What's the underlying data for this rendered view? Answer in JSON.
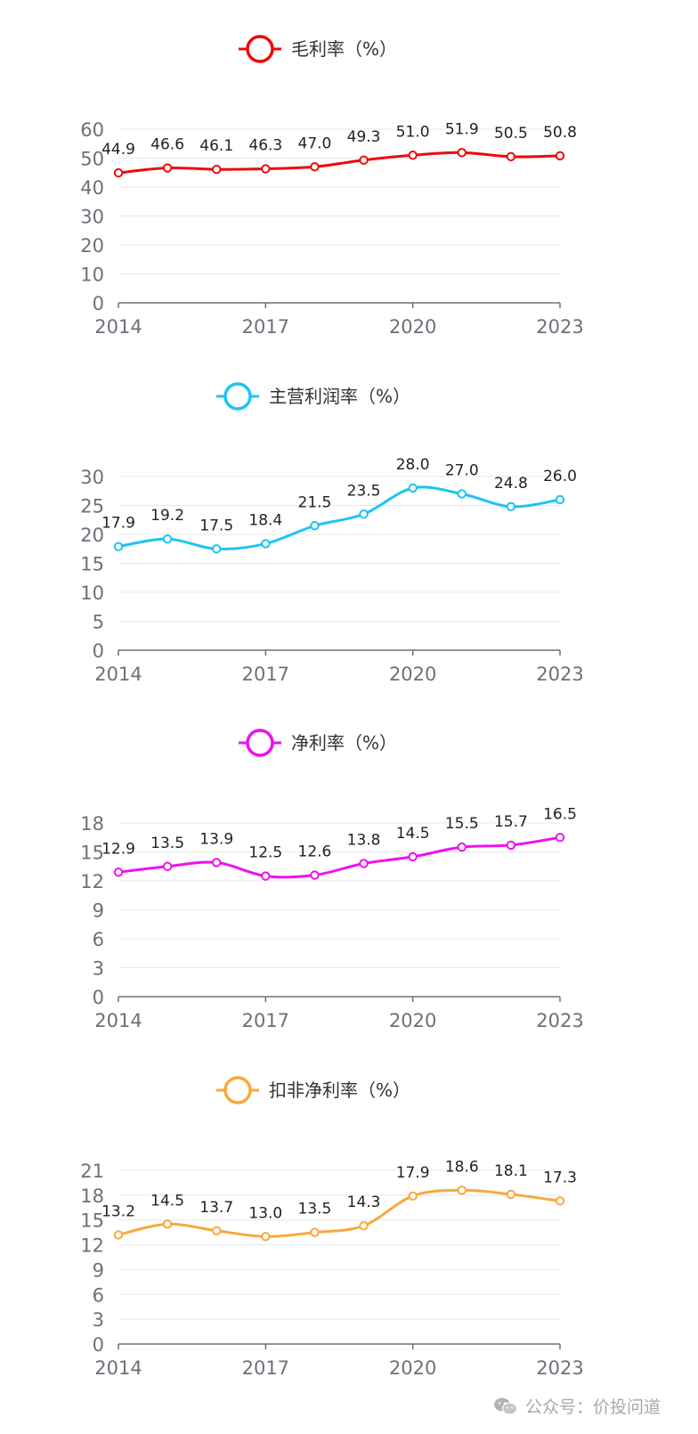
{
  "chart_data": [
    {
      "type": "line",
      "title": "毛利率（%）",
      "legend": "毛利率（%）",
      "color": "#ee0a0a",
      "x": [
        "2014",
        "2015",
        "2016",
        "2017",
        "2018",
        "2019",
        "2020",
        "2021",
        "2022",
        "2023"
      ],
      "values": [
        44.9,
        46.6,
        46.1,
        46.3,
        47.0,
        49.3,
        51.0,
        51.9,
        50.5,
        50.8
      ],
      "labels": [
        "44.9",
        "46.6",
        "46.1",
        "46.3",
        "47.0",
        "49.3",
        "51.0",
        "51.9",
        "50.5",
        "50.8"
      ],
      "xticks": [
        "2014",
        "2017",
        "2020",
        "2023"
      ],
      "yticks": [
        "0",
        "10",
        "20",
        "30",
        "40",
        "50",
        "60"
      ],
      "ylim": [
        0,
        60
      ],
      "xlabel": "",
      "ylabel": "",
      "grid": true
    },
    {
      "type": "line",
      "title": "主营利润率（%）",
      "legend": "主营利润率（%）",
      "color": "#1ec4f2",
      "x": [
        "2014",
        "2015",
        "2016",
        "2017",
        "2018",
        "2019",
        "2020",
        "2021",
        "2022",
        "2023"
      ],
      "values": [
        17.9,
        19.2,
        17.5,
        18.4,
        21.5,
        23.5,
        28.0,
        27.0,
        24.8,
        26.0
      ],
      "labels": [
        "17.9",
        "19.2",
        "17.5",
        "18.4",
        "21.5",
        "23.5",
        "28.0",
        "27.0",
        "24.8",
        "26.0"
      ],
      "xticks": [
        "2014",
        "2017",
        "2020",
        "2023"
      ],
      "yticks": [
        "0",
        "5",
        "10",
        "15",
        "20",
        "25",
        "30"
      ],
      "ylim": [
        0,
        30
      ],
      "xlabel": "",
      "ylabel": "",
      "grid": true
    },
    {
      "type": "line",
      "title": "净利率（%）",
      "legend": "净利率（%）",
      "color": "#ee11ee",
      "x": [
        "2014",
        "2015",
        "2016",
        "2017",
        "2018",
        "2019",
        "2020",
        "2021",
        "2022",
        "2023"
      ],
      "values": [
        12.9,
        13.5,
        13.9,
        12.5,
        12.6,
        13.8,
        14.5,
        15.5,
        15.7,
        16.5
      ],
      "labels": [
        "12.9",
        "13.5",
        "13.9",
        "12.5",
        "12.6",
        "13.8",
        "14.5",
        "15.5",
        "15.7",
        "16.5"
      ],
      "xticks": [
        "2014",
        "2017",
        "2020",
        "2023"
      ],
      "yticks": [
        "0",
        "3",
        "6",
        "9",
        "12",
        "15",
        "18"
      ],
      "ylim": [
        0,
        18
      ],
      "xlabel": "",
      "ylabel": "",
      "grid": true
    },
    {
      "type": "line",
      "title": "扣非净利率（%）",
      "legend": "扣非净利率（%）",
      "color": "#f9a83a",
      "x": [
        "2014",
        "2015",
        "2016",
        "2017",
        "2018",
        "2019",
        "2020",
        "2021",
        "2022",
        "2023"
      ],
      "values": [
        13.2,
        14.5,
        13.7,
        13.0,
        13.5,
        14.3,
        17.9,
        18.6,
        18.1,
        17.3
      ],
      "labels": [
        "13.2",
        "14.5",
        "13.7",
        "13.0",
        "13.5",
        "14.3",
        "17.9",
        "18.6",
        "18.1",
        "17.3"
      ],
      "xticks": [
        "2014",
        "2017",
        "2020",
        "2023"
      ],
      "yticks": [
        "0",
        "3",
        "6",
        "9",
        "12",
        "15",
        "18",
        "21"
      ],
      "ylim": [
        0,
        21
      ],
      "xlabel": "",
      "ylabel": "",
      "grid": true
    }
  ],
  "watermark": {
    "text": "公众号：价投问道",
    "icon": "wechat-icon"
  }
}
